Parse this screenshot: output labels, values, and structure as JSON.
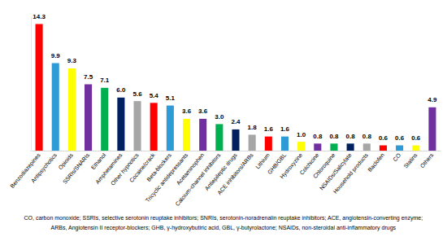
{
  "chart_data": {
    "type": "bar",
    "categories": [
      "Benzodiazepines",
      "Antipsychotics",
      "Opioids",
      "SSRIs/SNARIs",
      "Ethanol",
      "Amphetamines",
      "Other hypnotics",
      "Cocaine/crack",
      "Beta-blockers",
      "Tricyclic antidepressants",
      "Acetaminophen",
      "Calcium-channel inhibitors",
      "Antiepileptic drugs",
      "ACE inhibitors/ARBs",
      "Lithium",
      "GHB/GBL",
      "Hydroxyzine",
      "Colchicine",
      "Chloroquine",
      "NSAIDs/Salicylate",
      "Household products",
      "Baclofen",
      "CO",
      "Statins",
      "Others"
    ],
    "values": [
      14.3,
      9.9,
      9.3,
      7.5,
      7.1,
      6.0,
      5.6,
      5.4,
      5.1,
      3.6,
      3.6,
      3.0,
      2.4,
      1.8,
      1.6,
      1.6,
      1.0,
      0.8,
      0.8,
      0.8,
      0.8,
      0.6,
      0.6,
      0.6,
      4.9
    ],
    "value_labels": [
      "14.3",
      "9.9",
      "9.3",
      "7.5",
      "7.1",
      "6.0",
      "5.6",
      "5.4",
      "5.1",
      "3.6",
      "3.6",
      "3.0",
      "2.4",
      "1.8",
      "1.6",
      "1.6",
      "1.0",
      "0.8",
      "0.8",
      "0.8",
      "0.8",
      "0.6",
      "0.6",
      "0.6",
      "4.9"
    ],
    "colors": [
      "#ff0000",
      "#2e9ad6",
      "#ffff00",
      "#7030a0",
      "#00b050",
      "#002060",
      "#a6a6a6",
      "#ff0000",
      "#2e9ad6",
      "#ffff00",
      "#7030a0",
      "#00b050",
      "#002060",
      "#a6a6a6",
      "#ff0000",
      "#2e9ad6",
      "#ffff00",
      "#7030a0",
      "#00b050",
      "#002060",
      "#a6a6a6",
      "#ff0000",
      "#2e9ad6",
      "#ffff00",
      "#7030a0"
    ],
    "ylim": [
      0,
      15
    ],
    "grid": false,
    "data_labels": true,
    "tick_labels": "x",
    "annotations": [
      "CO, carbon monoxide; SSRIs, selective serotonin reuptake inhibitors; SNRIs, serotonin-noradrenalin reuptake inhibitors; ACE, angiotensin-converting enzyme;",
      "ARBs, Angiotensin II receptor-blockers; GHB, γ-hydroxybutiric acid, GBL, γ-butyrolactone; NSAIDs, non-steroidal anti-inflammatory drugs"
    ]
  }
}
